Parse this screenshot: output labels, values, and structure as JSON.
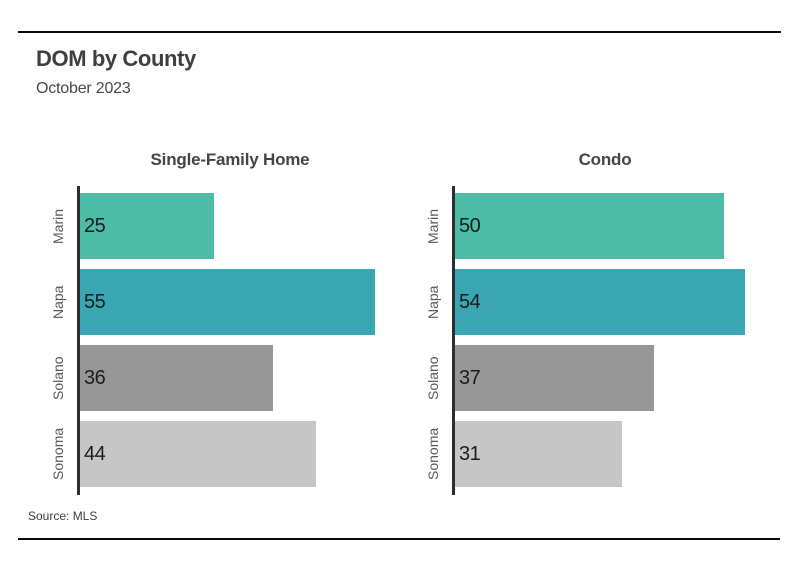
{
  "header": {
    "title": "DOM by County",
    "subtitle": "October 2023"
  },
  "source": "Source: MLS",
  "chart_data": {
    "type": "bar",
    "orientation": "horizontal",
    "title": "DOM by County",
    "subtitle": "October 2023",
    "categories": [
      "Marin",
      "Napa",
      "Solano",
      "Sonoma"
    ],
    "panels": [
      {
        "title": "Single-Family Home",
        "values": [
          25,
          55,
          36,
          44
        ]
      },
      {
        "title": "Condo",
        "values": [
          50,
          54,
          37,
          31
        ]
      }
    ],
    "bar_colors": [
      "#4ebba6",
      "#39a6b1",
      "#979797",
      "#c6c6c6"
    ],
    "xlim": [
      0,
      57.7
    ],
    "grid": false,
    "value_labels": "inside-left",
    "axis_color": "#2e2e2e",
    "source": "Source: MLS"
  }
}
